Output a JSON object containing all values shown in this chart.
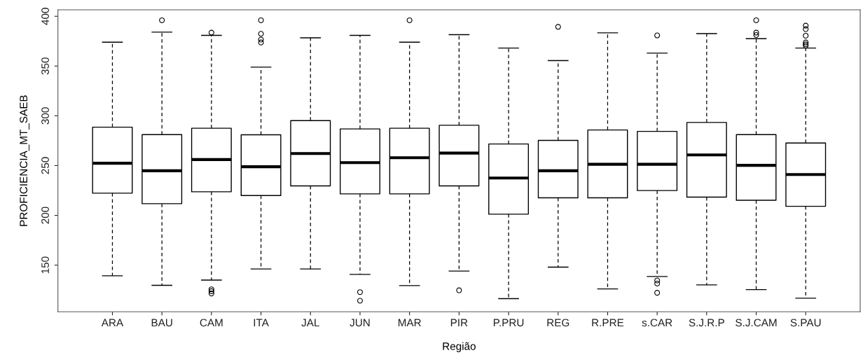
{
  "chart_data": {
    "type": "box",
    "xlabel": "Região",
    "ylabel": "PROFICIENCIA_MT_SAEB",
    "categories": [
      "ARA",
      "BAU",
      "CAM",
      "ITA",
      "JAL",
      "JUN",
      "MAR",
      "PIR",
      "P.PRU",
      "REG",
      "R.PRE",
      "s.CAR",
      "S.J.R.P",
      "S.J.CAM",
      "S.PAU"
    ],
    "boxes": [
      {
        "low": 139.3,
        "q1": 222.3,
        "median": 252.3,
        "q3": 288.6,
        "high": 374.0
      },
      {
        "low": 129.7,
        "q1": 211.7,
        "median": 244.8,
        "q3": 281.1,
        "high": 384.1,
        "outliers": [
          396
        ]
      },
      {
        "low": 135.0,
        "q1": 223.7,
        "median": 256.0,
        "q3": 287.5,
        "high": 380.8,
        "outliers": [
          383.6,
          125.7,
          123.8,
          121.5
        ]
      },
      {
        "low": 146.1,
        "q1": 219.9,
        "median": 248.8,
        "q3": 280.9,
        "high": 348.9,
        "outliers": [
          396,
          382.4,
          376.6,
          373.7
        ]
      },
      {
        "low": 146.1,
        "q1": 229.6,
        "median": 262.1,
        "q3": 295.2,
        "high": 378.4
      },
      {
        "low": 140.7,
        "q1": 221.6,
        "median": 253.0,
        "q3": 286.8,
        "high": 380.8,
        "outliers": [
          122.9,
          114.2
        ]
      },
      {
        "low": 129.4,
        "q1": 221.6,
        "median": 257.9,
        "q3": 287.5,
        "high": 374.0,
        "outliers": [
          396
        ]
      },
      {
        "low": 144.0,
        "q1": 229.6,
        "median": 262.6,
        "q3": 290.5,
        "high": 381.5,
        "outliers": [
          124.7
        ]
      },
      {
        "low": 116.3,
        "q1": 201.2,
        "median": 237.5,
        "q3": 271.7,
        "high": 368.1
      },
      {
        "low": 148.0,
        "q1": 217.6,
        "median": 244.8,
        "q3": 275.3,
        "high": 355.5,
        "outliers": [
          389.4
        ]
      },
      {
        "low": 126.1,
        "q1": 217.6,
        "median": 251.3,
        "q3": 285.8,
        "high": 383.4
      },
      {
        "low": 138.6,
        "q1": 224.9,
        "median": 251.3,
        "q3": 284.4,
        "high": 363.0,
        "outliers": [
          380.8,
          134.6,
          131.5,
          122.2
        ]
      },
      {
        "low": 130.1,
        "q1": 218.3,
        "median": 260.7,
        "q3": 293.3,
        "high": 382.6
      },
      {
        "low": 125.4,
        "q1": 215.2,
        "median": 250.2,
        "q3": 281.1,
        "high": 377.5,
        "outliers": [
          396,
          383.6,
          381.2
        ]
      },
      {
        "low": 116.8,
        "q1": 209.1,
        "median": 241.0,
        "q3": 272.7,
        "high": 368.1,
        "outliers": [
          390.6,
          387.1,
          380.5,
          373.7,
          371.9,
          370.5
        ]
      }
    ],
    "ylim": [
      103.1,
      406.5
    ],
    "yticks": [
      150,
      200,
      250,
      300,
      350,
      400
    ],
    "grid": false,
    "line_style": "dashed"
  }
}
